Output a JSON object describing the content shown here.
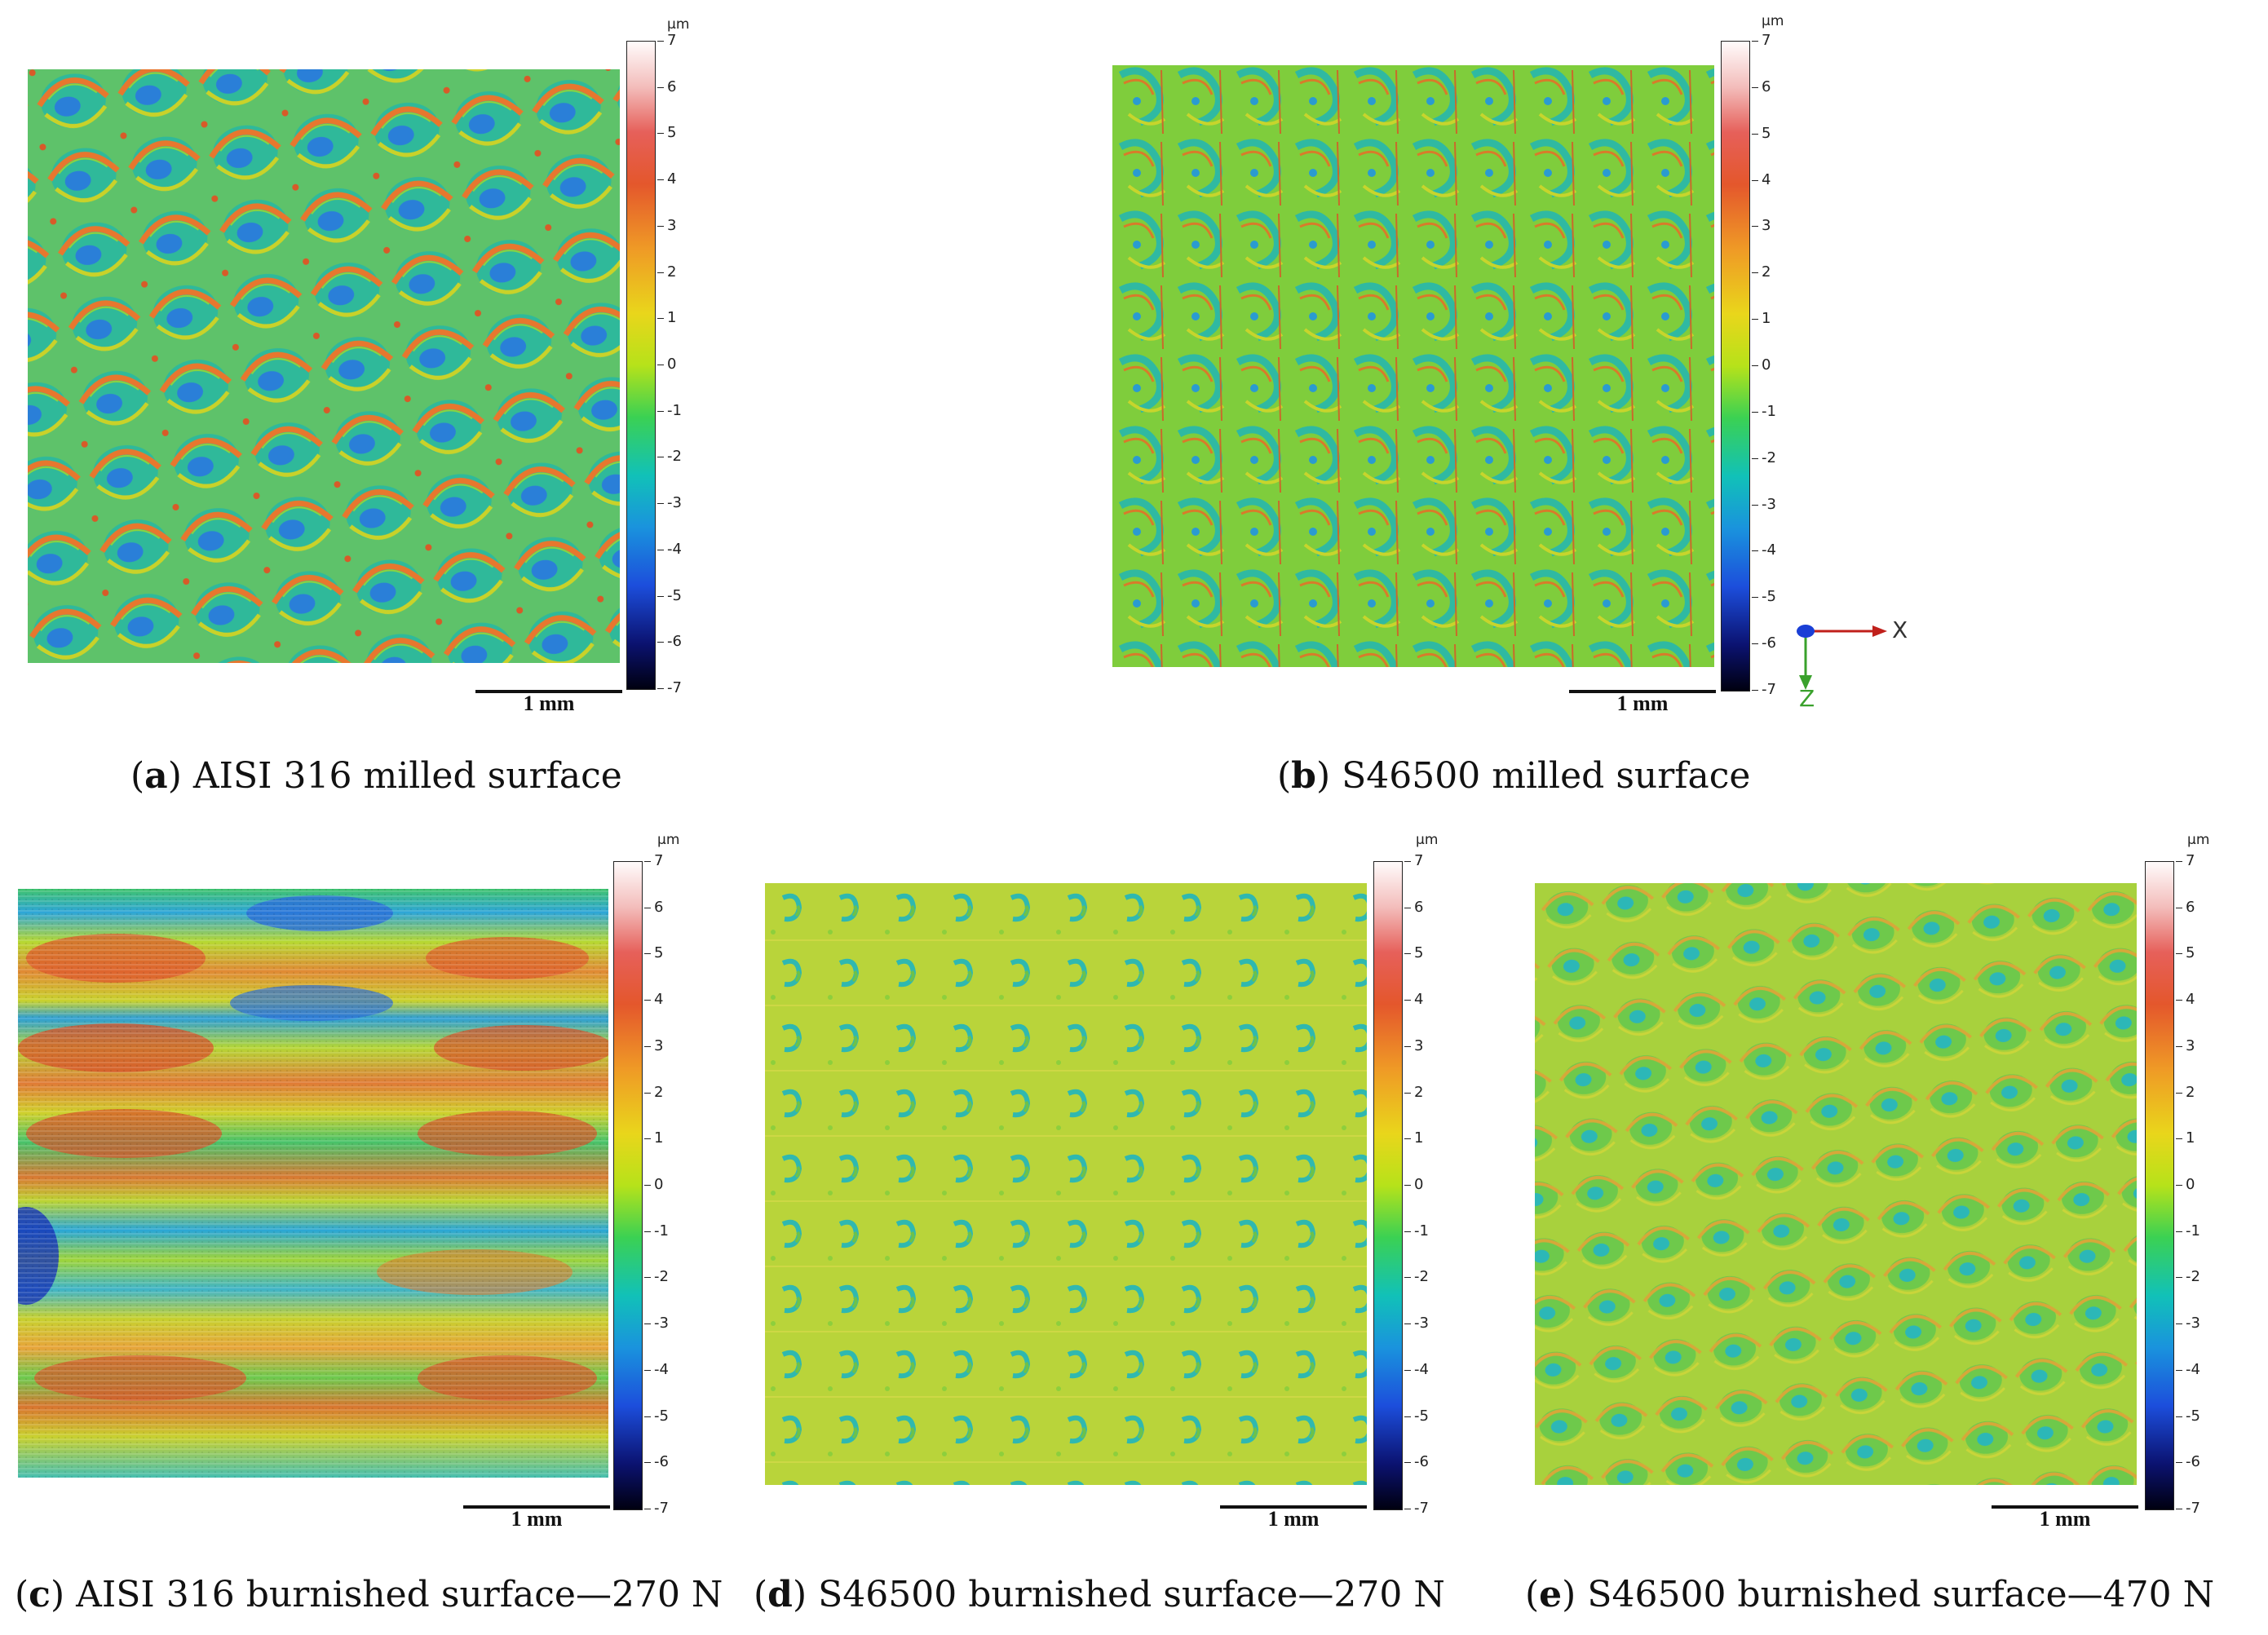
{
  "unit": "µm",
  "colorbar_ticks": [
    "7",
    "6",
    "5",
    "4",
    "3",
    "2",
    "1",
    "0",
    "-1",
    "-2",
    "-3",
    "-4",
    "-5",
    "-6",
    "-7"
  ],
  "scale_label": "1 mm",
  "axes": {
    "x": "X",
    "z": "Z"
  },
  "panels": [
    {
      "id": "a",
      "letter": "a",
      "title": "AISI 316 milled surface"
    },
    {
      "id": "b",
      "letter": "b",
      "title": "S46500 milled surface"
    },
    {
      "id": "c",
      "letter": "c",
      "title": "AISI 316 burnished surface—270 N"
    },
    {
      "id": "d",
      "letter": "d",
      "title": "S46500 burnished surface—270 N"
    },
    {
      "id": "e",
      "letter": "e",
      "title": "S46500 burnished surface—470 N"
    }
  ],
  "colors": {
    "bg": "#ffffff",
    "x_arrow": "#c0201b",
    "z_arrow": "#3aa12c",
    "origin": "#1a3fd6"
  }
}
